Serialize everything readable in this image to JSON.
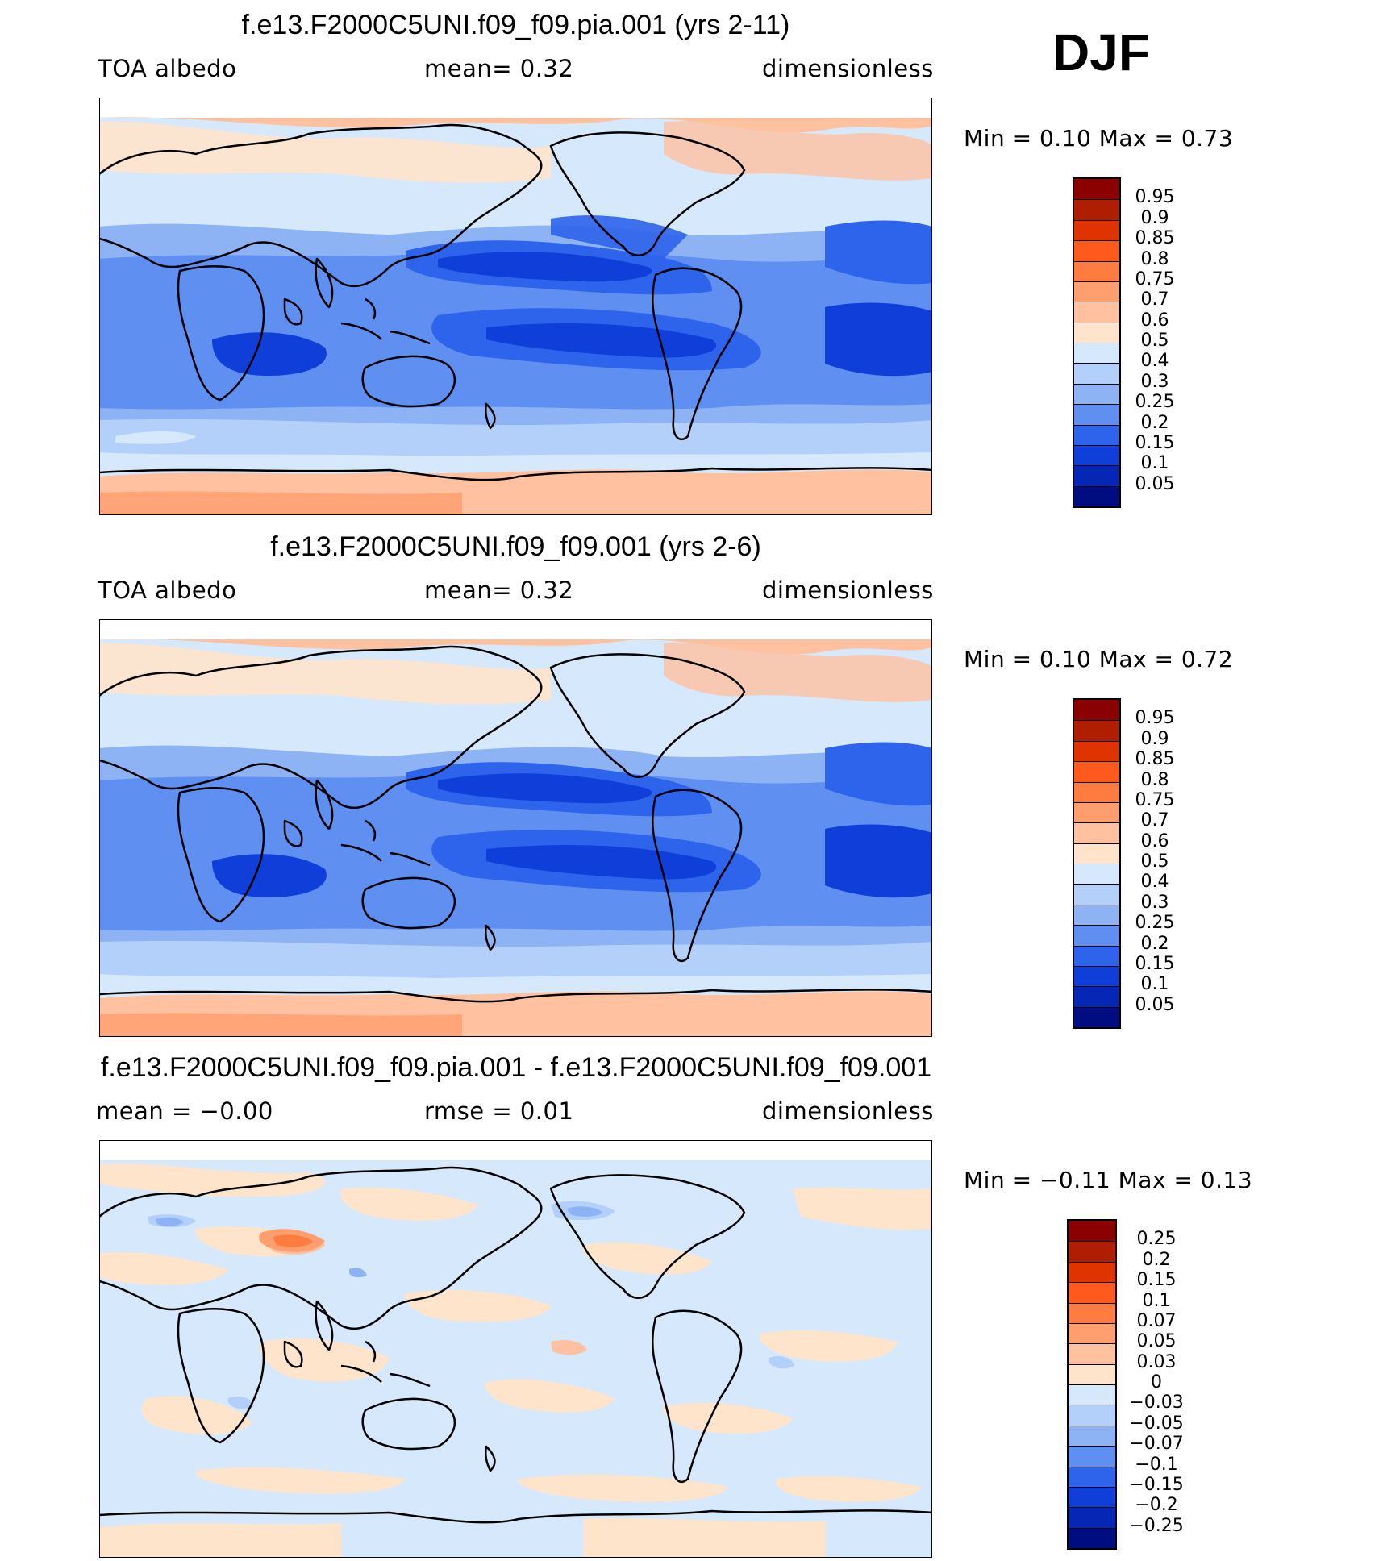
{
  "season": "DJF",
  "panels": [
    {
      "title": "f.e13.F2000C5UNI.f09_f09.pia.001 (yrs 2-11)",
      "left": "TOA  albedo",
      "center": "mean=    0.32",
      "right": "dimensionless",
      "minmax": "Min  =    0.10  Max  =    0.73",
      "type": "abs"
    },
    {
      "title": "f.e13.F2000C5UNI.f09_f09.001 (yrs 2-6)",
      "left": "TOA  albedo",
      "center": "mean=    0.32",
      "right": "dimensionless",
      "minmax": "Min  =    0.10  Max  =    0.72",
      "type": "abs"
    },
    {
      "title": "f.e13.F2000C5UNI.f09_f09.pia.001 - f.e13.F2000C5UNI.f09_f09.001",
      "left": "mean  =   −0.00",
      "center": "rmse  =    0.01",
      "right": "dimensionless",
      "minmax": "Min  =   −0.11  Max  =    0.13",
      "type": "diff"
    }
  ],
  "colorbars": {
    "abs": {
      "labels": [
        "0.95",
        "0.9",
        "0.85",
        "0.8",
        "0.75",
        "0.7",
        "0.6",
        "0.5",
        "0.4",
        "0.3",
        "0.25",
        "0.2",
        "0.15",
        "0.1",
        "0.05"
      ],
      "colors": [
        "#8b0000",
        "#b01e00",
        "#e03400",
        "#ff5a1e",
        "#ff7c40",
        "#ff9e6e",
        "#ffc1a0",
        "#ffe4cc",
        "#d6e8fc",
        "#b3d0fa",
        "#8db3f5",
        "#5f8ff0",
        "#2e63eb",
        "#0f3fd8",
        "#0627b5",
        "#000d80"
      ]
    },
    "diff": {
      "labels": [
        "0.25",
        "0.2",
        "0.15",
        "0.1",
        "0.07",
        "0.05",
        "0.03",
        "0",
        "−0.03",
        "−0.05",
        "−0.07",
        "−0.1",
        "−0.15",
        "−0.2",
        "−0.25"
      ],
      "colors": [
        "#8b0000",
        "#b01e00",
        "#e03400",
        "#ff5a1e",
        "#ff7c40",
        "#ff9e6e",
        "#ffc1a0",
        "#ffe4cc",
        "#d6e8fc",
        "#b3d0fa",
        "#8db3f5",
        "#5f8ff0",
        "#2e63eb",
        "#0f3fd8",
        "#0627b5",
        "#000d80"
      ]
    }
  }
}
